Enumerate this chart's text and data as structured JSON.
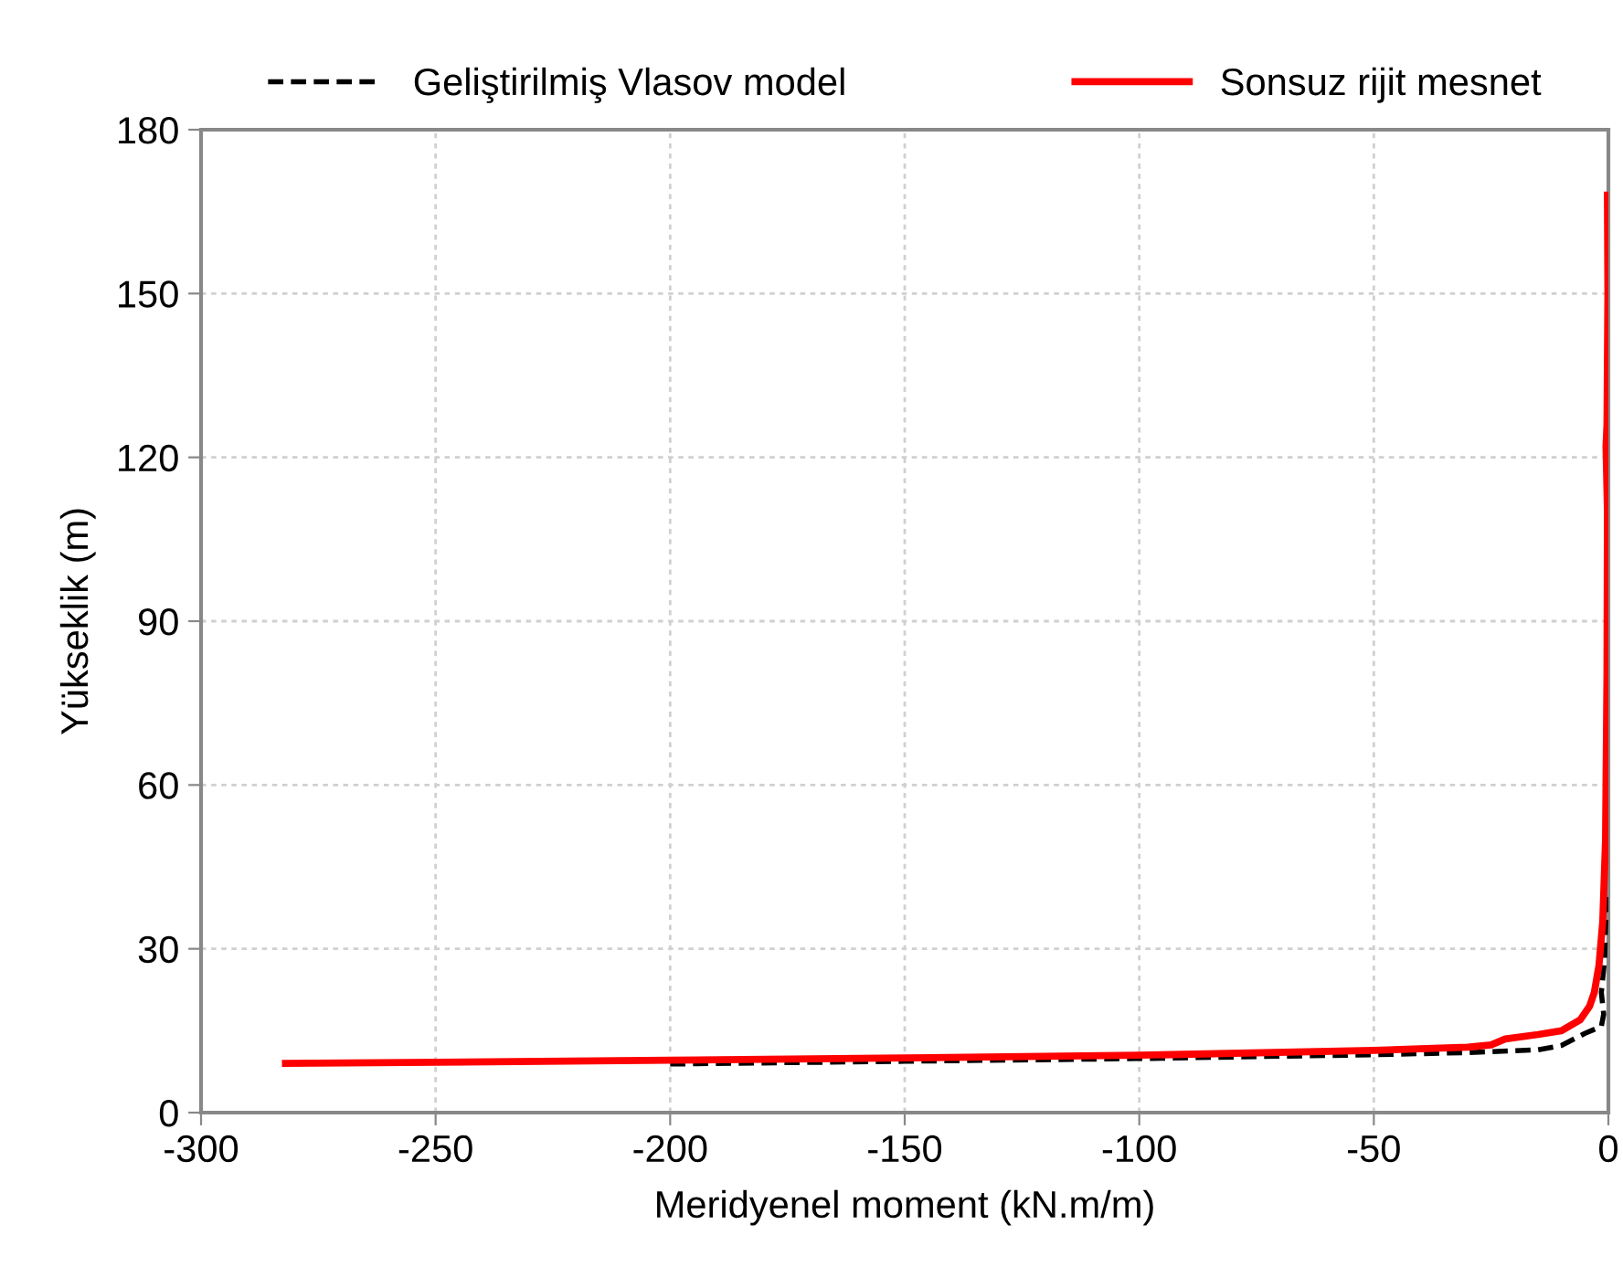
{
  "chart_data": {
    "type": "line",
    "xlabel": "Meridyenel moment (kN.m/m)",
    "ylabel": "Yükseklik (m)",
    "xlim": [
      -300,
      0
    ],
    "xticks": [
      -300,
      -250,
      -200,
      -150,
      -100,
      -50,
      0
    ],
    "ylim": [
      0,
      180
    ],
    "yticks": [
      0,
      30,
      60,
      90,
      120,
      150,
      180
    ],
    "grid": true,
    "legend": "top",
    "marker": "none",
    "series": [
      {
        "name": "Geliştirilmiş Vlasov model",
        "color": "#000000",
        "line_style": "dashed",
        "x": [
          -200,
          -150,
          -100,
          -50,
          -30,
          -15,
          -10,
          -5,
          -1.5,
          -1.0,
          -1.5,
          -0.8,
          -0.4
        ],
        "values": [
          8.9,
          9.4,
          9.9,
          10.6,
          11.0,
          11.5,
          12.3,
          14.5,
          15.8,
          18,
          22,
          28,
          40
        ]
      },
      {
        "name": "Sonsuz rijit mesnet",
        "color": "#ff0000",
        "line_style": "solid",
        "x": [
          -282,
          -200,
          -150,
          -100,
          -50,
          -30,
          -25,
          -22,
          -15,
          -10,
          -6,
          -4,
          -3,
          -2,
          -1.2,
          -0.6,
          -0.3,
          -0.2,
          -0.5,
          -0.3,
          -0.1,
          -0.2
        ],
        "values": [
          9.0,
          9.6,
          10.0,
          10.5,
          11.4,
          12.0,
          12.4,
          13.5,
          14.3,
          15.0,
          17,
          19.5,
          22,
          27,
          35,
          50,
          80,
          110,
          122,
          126,
          150,
          168
        ]
      }
    ]
  }
}
